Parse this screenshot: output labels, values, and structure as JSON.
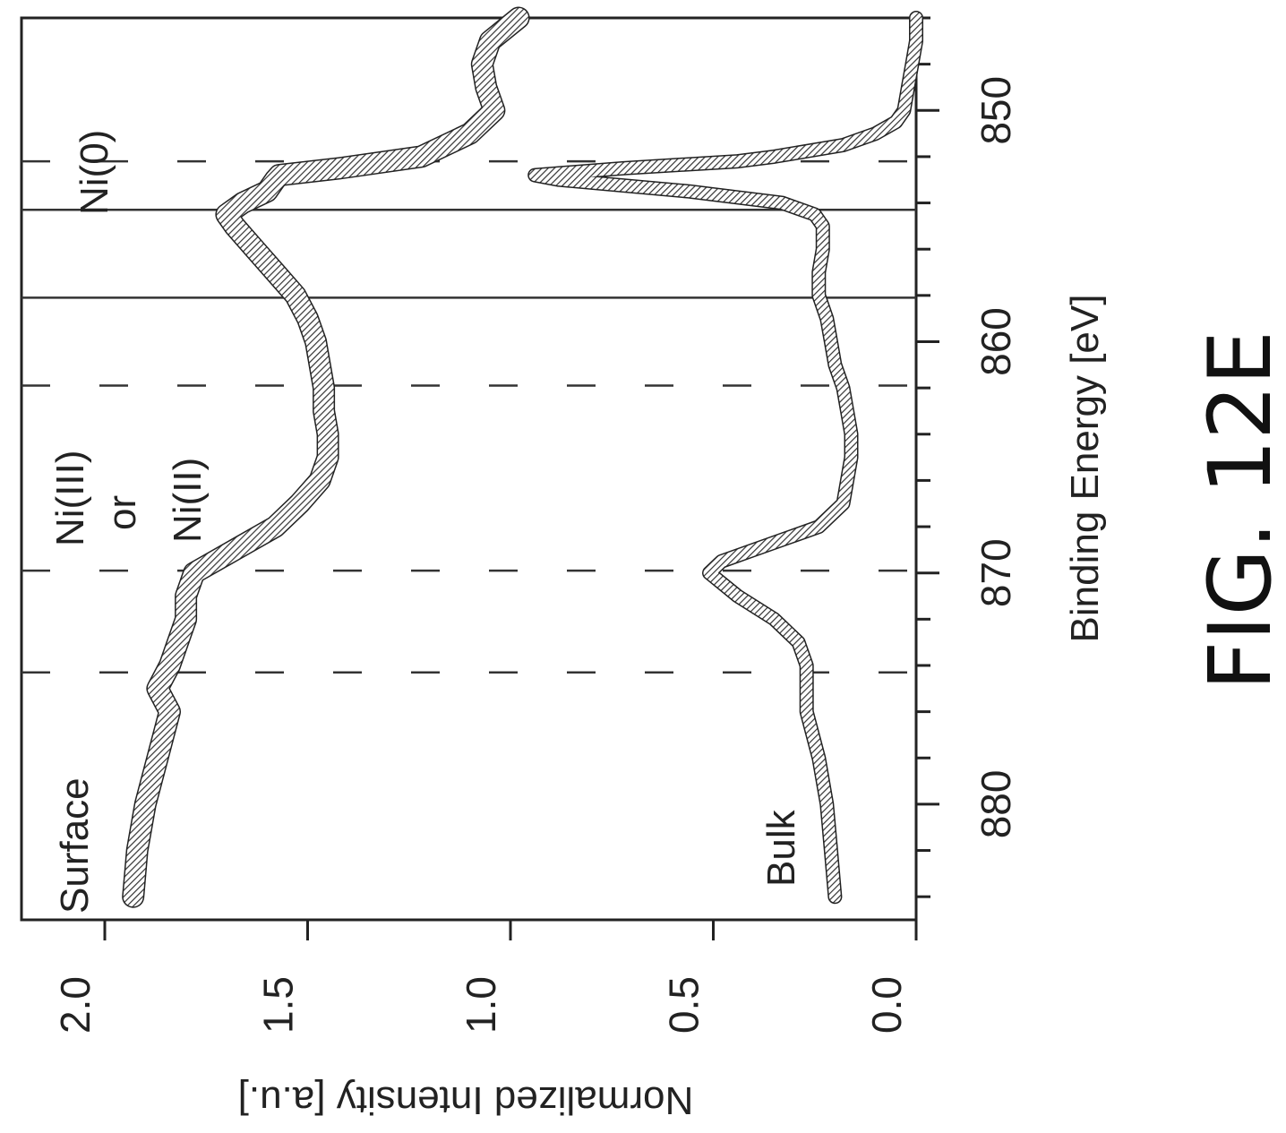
{
  "chart_data": {
    "type": "line",
    "orientation": "rotated 90 degrees clockwise (binding energy runs along the page vertical, intensity along the page horizontal)",
    "figure_label": "FIG. 12E",
    "xlabel": "Binding Energy [eV]",
    "ylabel": "Normalized Intensity [a.u.]",
    "x_reversed": true,
    "xlim": [
      885,
      846
    ],
    "ylim": [
      0.0,
      2.0
    ],
    "x_ticks": [
      880,
      870,
      860,
      850
    ],
    "x_tick_labels": [
      "880",
      "870",
      "860",
      "850"
    ],
    "y_ticks": [
      0.0,
      0.5,
      1.0,
      1.5,
      2.0
    ],
    "y_tick_labels": [
      "0.0",
      "0.5",
      "1.0",
      "1.5",
      "2.0"
    ],
    "grid": false,
    "series": [
      {
        "name": "Surface",
        "x": [
          884,
          882,
          880,
          878,
          876,
          875,
          874,
          873,
          872,
          871,
          870,
          869,
          868,
          867,
          866,
          865,
          864,
          863,
          862,
          861,
          860,
          859,
          858,
          857,
          856,
          855,
          854.5,
          854,
          853.5,
          853,
          852.8,
          852.5,
          852,
          851,
          850,
          849,
          848,
          847,
          846
        ],
        "y": [
          1.93,
          1.92,
          1.9,
          1.87,
          1.84,
          1.87,
          1.84,
          1.82,
          1.8,
          1.8,
          1.78,
          1.68,
          1.58,
          1.52,
          1.47,
          1.45,
          1.45,
          1.46,
          1.46,
          1.47,
          1.48,
          1.5,
          1.53,
          1.58,
          1.63,
          1.68,
          1.7,
          1.66,
          1.6,
          1.58,
          1.57,
          1.42,
          1.22,
          1.1,
          1.04,
          1.06,
          1.07,
          1.05,
          0.98
        ]
      },
      {
        "name": "Bulk",
        "x": [
          884,
          882,
          880,
          878,
          876,
          875,
          874,
          873,
          872,
          871,
          870,
          869.5,
          869,
          868.5,
          868,
          867,
          866,
          865,
          864,
          863,
          862,
          861,
          860,
          859,
          858,
          857,
          856,
          855,
          854.5,
          854,
          853.5,
          853,
          852.8,
          852.5,
          852.2,
          852,
          851.5,
          851,
          850.5,
          850,
          849,
          848,
          847,
          846
        ],
        "y": [
          0.2,
          0.21,
          0.22,
          0.24,
          0.27,
          0.27,
          0.27,
          0.29,
          0.35,
          0.44,
          0.51,
          0.48,
          0.4,
          0.32,
          0.24,
          0.18,
          0.17,
          0.16,
          0.16,
          0.17,
          0.18,
          0.2,
          0.21,
          0.22,
          0.24,
          0.24,
          0.23,
          0.23,
          0.25,
          0.33,
          0.56,
          0.88,
          0.94,
          0.72,
          0.44,
          0.35,
          0.18,
          0.1,
          0.05,
          0.03,
          0.02,
          0.01,
          0.0,
          0.0
        ]
      }
    ],
    "reference_lines": [
      {
        "x": 874.3,
        "style": "dashed"
      },
      {
        "x": 869.9,
        "style": "dashed"
      },
      {
        "x": 861.9,
        "style": "dashed"
      },
      {
        "x": 858.1,
        "style": "solid"
      },
      {
        "x": 854.3,
        "style": "solid"
      },
      {
        "x": 852.2,
        "style": "dashed"
      }
    ],
    "annotations": [
      {
        "text": "Surface"
      },
      {
        "text": "Bulk"
      },
      {
        "text": "Ni(III)"
      },
      {
        "text": "or"
      },
      {
        "text": "Ni(II)"
      },
      {
        "text": "Ni(0)"
      }
    ],
    "colors": {
      "background": "#ffffff",
      "ink": "#222222",
      "trace": "#555555"
    }
  }
}
